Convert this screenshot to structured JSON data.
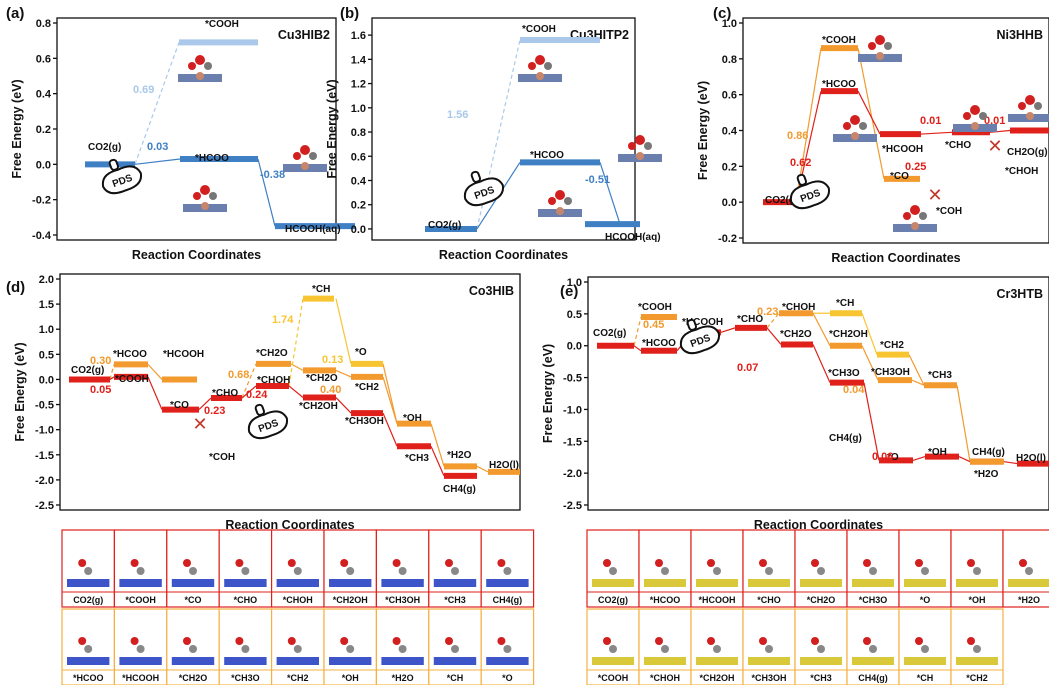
{
  "chart_data": [
    {
      "panel": "(a)",
      "title": "Cu3HIB2",
      "type": "line",
      "xlabel": "Reaction Coordinates",
      "ylabel": "Free Energy (eV)",
      "ylim": [
        -0.4,
        0.8
      ],
      "yticks": [
        "-0.4",
        "-0.2",
        "0.0",
        "0.2",
        "0.4",
        "0.6",
        "0.8"
      ],
      "ytick_values": [
        -0.4,
        -0.2,
        0,
        0.2,
        0.4,
        0.6,
        0.8
      ],
      "levels": [
        {
          "label": "CO2(g)",
          "value": 0.0,
          "color": "#3f7fc4"
        },
        {
          "label": "*COOH",
          "value": 0.69,
          "color": "#a9c8ea"
        },
        {
          "label": "*HCOO",
          "value": 0.03,
          "color": "#3f7fc4"
        },
        {
          "label": "HCOOH(aq)",
          "value": -0.35,
          "color": "#3f7fc4"
        }
      ],
      "step_labels": [
        {
          "text": "0.69",
          "color": "#a9c8ea"
        },
        {
          "text": "0.03",
          "color": "#3f7fc4"
        },
        {
          "text": "-0.38",
          "color": "#3f7fc4"
        }
      ],
      "pds": "PDS"
    },
    {
      "panel": "(b)",
      "title": "Cu3HITP2",
      "type": "line",
      "xlabel": "Reaction Coordinates",
      "ylabel": "Free Energy (eV)",
      "ylim": [
        -0.05,
        1.7
      ],
      "yticks": [
        "0.0",
        "0.2",
        "0.4",
        "0.6",
        "0.8",
        "1.0",
        "1.2",
        "1.4",
        "1.6"
      ],
      "ytick_values": [
        0,
        0.2,
        0.4,
        0.6,
        0.8,
        1.0,
        1.2,
        1.4,
        1.6
      ],
      "levels": [
        {
          "label": "CO2(g)",
          "value": 0.0,
          "color": "#3f7fc4"
        },
        {
          "label": "*COOH",
          "value": 1.56,
          "color": "#a9c8ea"
        },
        {
          "label": "*HCOO",
          "value": 0.55,
          "color": "#3f7fc4"
        },
        {
          "label": "HCOOH(aq)",
          "value": 0.04,
          "color": "#3f7fc4"
        }
      ],
      "step_labels": [
        {
          "text": "1.56",
          "color": "#a9c8ea"
        },
        {
          "text": "0.55",
          "color": "#3f7fc4"
        },
        {
          "text": "-0.51",
          "color": "#3f7fc4"
        }
      ],
      "pds": "PDS"
    },
    {
      "panel": "(c)",
      "title": "Ni3HHB",
      "type": "line",
      "xlabel": "Reaction Coordinates",
      "ylabel": "Free Energy (eV)",
      "ylim": [
        -0.2,
        1.0
      ],
      "yticks": [
        "-0.2",
        "0.0",
        "0.2",
        "0.4",
        "0.6",
        "0.8",
        "1.0"
      ],
      "ytick_values": [
        -0.2,
        0,
        0.2,
        0.4,
        0.6,
        0.8,
        1.0
      ],
      "levels": [
        {
          "label": "CO2(g)",
          "value": 0.0,
          "color": "#e0201b"
        },
        {
          "label": "*COOH",
          "value": 0.86,
          "color": "#f29a2e"
        },
        {
          "label": "*HCOO",
          "value": 0.62,
          "color": "#e0201b"
        },
        {
          "label": "*CO",
          "value": 0.13,
          "color": "#f29a2e"
        },
        {
          "label": "*HCOOH",
          "value": 0.38,
          "color": "#e0201b"
        },
        {
          "label": "*CHO",
          "value": 0.39,
          "color": "#e0201b"
        },
        {
          "label": "CH2O(g)",
          "value": 0.4,
          "color": "#e0201b"
        }
      ],
      "step_labels": [
        {
          "text": "0.86",
          "color": "#f29a2e"
        },
        {
          "text": "0.62",
          "color": "#e0201b"
        },
        {
          "text": "0.25",
          "color": "#e0201b"
        },
        {
          "text": "0.01",
          "color": "#e0201b"
        },
        {
          "text": "0.01",
          "color": "#e0201b"
        }
      ],
      "blocked": [
        "*COH",
        "*CHOH"
      ],
      "pds": "PDS"
    },
    {
      "panel": "(d)",
      "title": "Co3HIB",
      "type": "line",
      "xlabel": "Reaction Coordinates",
      "ylabel": "Free Energy (eV)",
      "ylim": [
        -2.5,
        2.0
      ],
      "yticks": [
        "-2.5",
        "-2.0",
        "-1.5",
        "-1.0",
        "-0.5",
        "0.0",
        "0.5",
        "1.0",
        "1.5",
        "2.0"
      ],
      "ytick_values": [
        -2.5,
        -2.0,
        -1.5,
        -1.0,
        -0.5,
        0,
        0.5,
        1.0,
        1.5,
        2.0
      ],
      "levels": [
        {
          "label": "CO2(g)",
          "value": 0.0,
          "color": "#e0201b"
        },
        {
          "label": "*HCOO",
          "value": 0.3,
          "color": "#f29a2e"
        },
        {
          "label": "*COOH",
          "value": 0.05,
          "color": "#e0201b"
        },
        {
          "label": "*HCOOH",
          "value": 0.0,
          "color": "#f29a2e"
        },
        {
          "label": "*CO",
          "value": -0.6,
          "color": "#e0201b"
        },
        {
          "label": "*CHO",
          "value": -0.37,
          "color": "#e0201b"
        },
        {
          "label": "*CH2O",
          "value": 0.31,
          "color": "#f29a2e"
        },
        {
          "label": "*CHOH",
          "value": -0.13,
          "color": "#e0201b"
        },
        {
          "label": "*CH",
          "value": 1.61,
          "color": "#f7c531"
        },
        {
          "label": "*CH2O",
          "value": 0.18,
          "color": "#f29a2e"
        },
        {
          "label": "*CH2OH",
          "value": -0.36,
          "color": "#e0201b"
        },
        {
          "label": "*O",
          "value": 0.31,
          "color": "#f7c531"
        },
        {
          "label": "*CH2",
          "value": 0.05,
          "color": "#f29a2e"
        },
        {
          "label": "*CH3OH",
          "value": -0.67,
          "color": "#e0201b"
        },
        {
          "label": "*OH",
          "value": -0.88,
          "color": "#f29a2e"
        },
        {
          "label": "*CH3",
          "value": -1.33,
          "color": "#e0201b"
        },
        {
          "label": "*H2O",
          "value": -1.73,
          "color": "#f29a2e"
        },
        {
          "label": "CH4(g)",
          "value": -1.92,
          "color": "#e0201b"
        },
        {
          "label": "H2O(l)",
          "value": -1.84,
          "color": "#f29a2e"
        }
      ],
      "step_labels": [
        {
          "text": "0.30",
          "color": "#f29a2e"
        },
        {
          "text": "0.05",
          "color": "#e0201b"
        },
        {
          "text": "0.68",
          "color": "#f29a2e"
        },
        {
          "text": "0.23",
          "color": "#e0201b"
        },
        {
          "text": "0.24",
          "color": "#e0201b"
        },
        {
          "text": "1.74",
          "color": "#f7c531"
        },
        {
          "text": "0.13",
          "color": "#f7c531"
        },
        {
          "text": "0.40",
          "color": "#f29a2e"
        }
      ],
      "blocked": [
        "*COH"
      ],
      "pds": "PDS"
    },
    {
      "panel": "(e)",
      "title": "Cr3HTB",
      "type": "line",
      "xlabel": "Reaction Coordinates",
      "ylabel": "Free Energy (eV)",
      "ylim": [
        -2.5,
        1.0
      ],
      "yticks": [
        "-2.5",
        "-2.0",
        "-1.5",
        "-1.0",
        "-0.5",
        "0.0",
        "0.5",
        "1.0"
      ],
      "ytick_values": [
        -2.5,
        -2.0,
        -1.5,
        -1.0,
        -0.5,
        0,
        0.5,
        1.0
      ],
      "levels": [
        {
          "label": "CO2(g)",
          "value": 0.0,
          "color": "#e0201b"
        },
        {
          "label": "*COOH",
          "value": 0.45,
          "color": "#f29a2e"
        },
        {
          "label": "*HCOO",
          "value": -0.08,
          "color": "#e0201b"
        },
        {
          "label": "*HCOOH",
          "value": 0.21,
          "color": "#e0201b"
        },
        {
          "label": "*CHO",
          "value": 0.28,
          "color": "#e0201b"
        },
        {
          "label": "*CHOH",
          "value": 0.51,
          "color": "#f29a2e"
        },
        {
          "label": "*CH2O",
          "value": 0.02,
          "color": "#e0201b"
        },
        {
          "label": "*CH",
          "value": 0.51,
          "color": "#f7c531"
        },
        {
          "label": "*CH2OH",
          "value": 0.0,
          "color": "#f29a2e"
        },
        {
          "label": "*CH3O",
          "value": -0.58,
          "color": "#e0201b"
        },
        {
          "label": "*CH2",
          "value": -0.14,
          "color": "#f7c531"
        },
        {
          "label": "*CH3OH",
          "value": -0.54,
          "color": "#f29a2e"
        },
        {
          "label": "*CH3",
          "value": -0.62,
          "color": "#f29a2e"
        },
        {
          "label": "*O",
          "value": -1.8,
          "color": "#e0201b"
        },
        {
          "label": "*OH",
          "value": -1.74,
          "color": "#e0201b"
        },
        {
          "label": "CH4(g)",
          "value": -1.35,
          "color": "#e0201b"
        },
        {
          "label": "*H2O",
          "value": -1.82,
          "color": "#e0201b"
        },
        {
          "label": "CH4(g)",
          "value": -1.82,
          "color": "#f29a2e"
        },
        {
          "label": "H2O(l)",
          "value": -1.85,
          "color": "#e0201b"
        }
      ],
      "step_labels": [
        {
          "text": "0.45",
          "color": "#f29a2e"
        },
        {
          "text": "0.29",
          "color": "#e0201b"
        },
        {
          "text": "0.07",
          "color": "#e0201b"
        },
        {
          "text": "0.23",
          "color": "#f29a2e"
        },
        {
          "text": "0.04",
          "color": "#f29a2e"
        },
        {
          "text": "0.06",
          "color": "#e0201b"
        }
      ],
      "pds": "PDS"
    }
  ],
  "structure_tables": {
    "co3hib_red": [
      "CO2(g)",
      "*COOH",
      "*CO",
      "*CHO",
      "*CHOH",
      "*CH2OH",
      "*CH3OH",
      "*CH3",
      "CH4(g)"
    ],
    "co3hib_orange": [
      "*HCOO",
      "*HCOOH",
      "*CH2O",
      "*CH3O",
      "*CH2",
      "*OH",
      "*H2O",
      "*CH",
      "*O"
    ],
    "cr3htb_red": [
      "CO2(g)",
      "*HCOO",
      "*HCOOH",
      "*CHO",
      "*CH2O",
      "*CH3O",
      "*O",
      "*OH",
      "*H2O"
    ],
    "cr3htb_orange": [
      "*COOH",
      "*CHOH",
      "*CH2OH",
      "*CH3OH",
      "*CH3",
      "CH4(g)",
      "*CH",
      "*CH2"
    ]
  },
  "colors": {
    "dark_blue": "#3f7fc4",
    "light_blue": "#a9c8ea",
    "red": "#e0201b",
    "orange": "#f29a2e",
    "yellow": "#f7c531",
    "table_red": "#e0201b",
    "table_orange": "#f5b041"
  }
}
